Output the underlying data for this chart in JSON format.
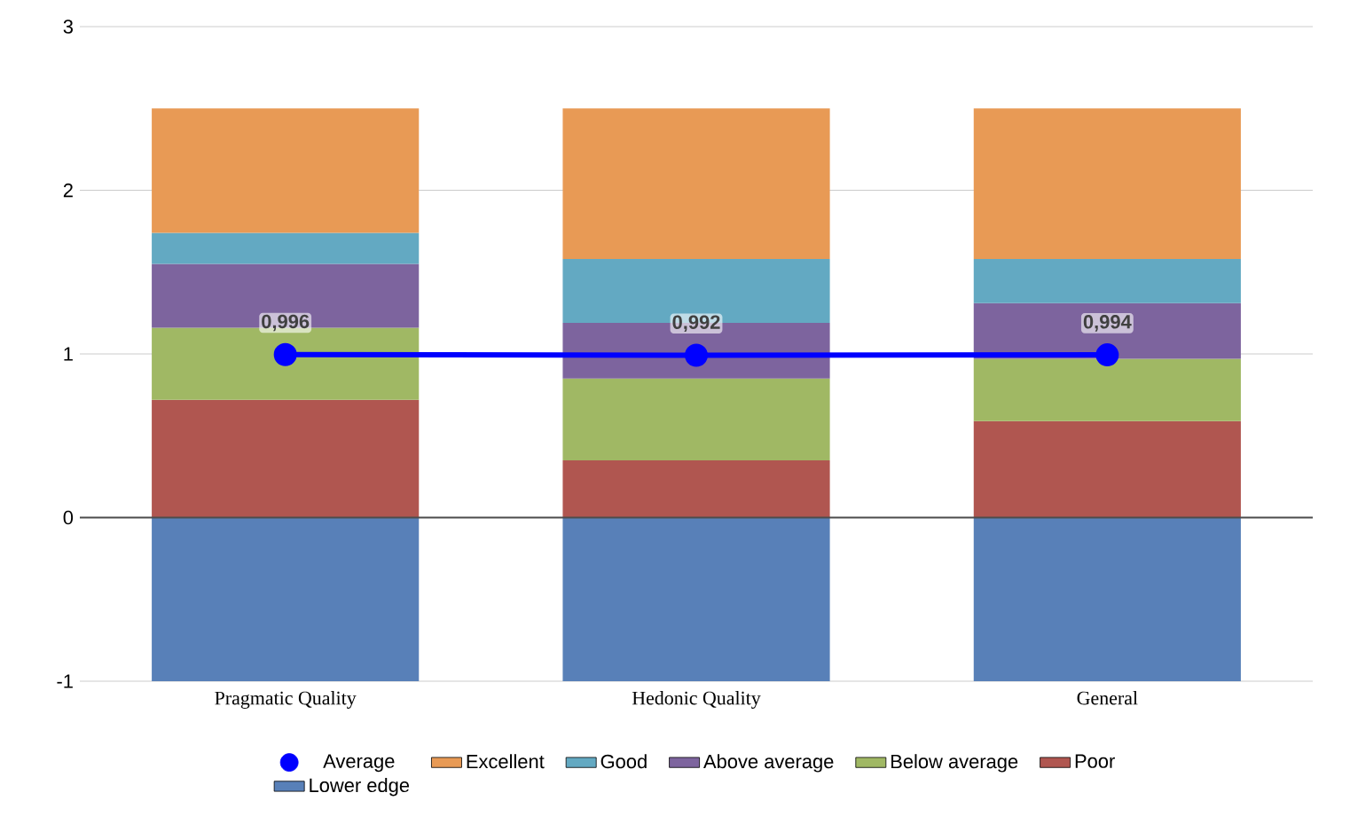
{
  "chart_data": {
    "type": "bar",
    "stacked": true,
    "categories": [
      "Pragmatic Quality",
      "Hedonic Quality",
      "General"
    ],
    "series": [
      {
        "name": "Lower edge",
        "color": "#5880b8",
        "values": [
          -1,
          -1,
          -1
        ]
      },
      {
        "name": "Poor",
        "color": "#b05650",
        "values": [
          0.72,
          0.35,
          0.59
        ]
      },
      {
        "name": "Below average",
        "color": "#a0b864",
        "values": [
          0.44,
          0.5,
          0.38
        ]
      },
      {
        "name": "Above average",
        "color": "#7d649e",
        "values": [
          0.39,
          0.34,
          0.34
        ]
      },
      {
        "name": "Good",
        "color": "#63a9c2",
        "values": [
          0.19,
          0.39,
          0.27
        ]
      },
      {
        "name": "Excellent",
        "color": "#e89a55",
        "values": [
          0.76,
          0.92,
          0.92
        ]
      },
      {
        "name": "Average",
        "type": "line",
        "color": "#0000ff",
        "marker": "circle",
        "values": [
          0.996,
          0.992,
          0.994
        ],
        "value_labels": [
          "0,996",
          "0,992",
          "0,994"
        ]
      }
    ],
    "ylim": [
      -1,
      3
    ],
    "yticks": [
      -1,
      0,
      1,
      2,
      3
    ],
    "grid": "y",
    "legend": "bottom"
  }
}
